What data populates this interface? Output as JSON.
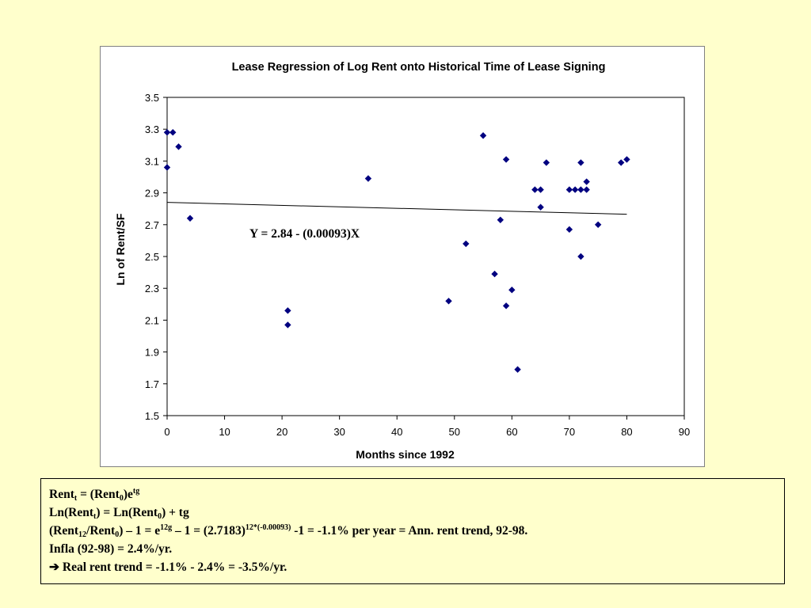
{
  "colors": {
    "background": "#FFFFCC",
    "marker": "#000080",
    "trendline": "#000000"
  },
  "chart_data": {
    "type": "scatter",
    "title": "Lease Regression of Log Rent onto Historical Time of Lease Signing",
    "xlabel": "Months since 1992",
    "ylabel": "Ln of Rent/SF",
    "xlim": [
      0,
      90
    ],
    "ylim": [
      1.5,
      3.5
    ],
    "xticks": [
      0,
      10,
      20,
      30,
      40,
      50,
      60,
      70,
      80,
      90
    ],
    "xtick_labels": [
      "0",
      "10",
      "20",
      "30",
      "40",
      "50",
      "60",
      "70",
      "80",
      "90"
    ],
    "yticks": [
      1.5,
      1.7,
      1.9,
      2.1,
      2.3,
      2.5,
      2.7,
      2.9,
      3.1,
      3.3,
      3.5
    ],
    "ytick_labels": [
      "1.5",
      "1.7",
      "1.9",
      "2.1",
      "2.3",
      "2.5",
      "2.7",
      "2.9",
      "3.1",
      "3.3",
      "3.5"
    ],
    "grid": false,
    "legend": "none",
    "points": [
      {
        "x": 0,
        "y": 3.28
      },
      {
        "x": 0,
        "y": 3.06
      },
      {
        "x": 1,
        "y": 3.28
      },
      {
        "x": 2,
        "y": 3.19
      },
      {
        "x": 4,
        "y": 2.74
      },
      {
        "x": 21,
        "y": 2.16
      },
      {
        "x": 21,
        "y": 2.07
      },
      {
        "x": 35,
        "y": 2.99
      },
      {
        "x": 49,
        "y": 2.22
      },
      {
        "x": 52,
        "y": 2.58
      },
      {
        "x": 55,
        "y": 3.26
      },
      {
        "x": 57,
        "y": 2.39
      },
      {
        "x": 58,
        "y": 2.73
      },
      {
        "x": 59,
        "y": 3.11
      },
      {
        "x": 59,
        "y": 2.19
      },
      {
        "x": 60,
        "y": 2.29
      },
      {
        "x": 61,
        "y": 1.79
      },
      {
        "x": 64,
        "y": 2.92
      },
      {
        "x": 65,
        "y": 2.92
      },
      {
        "x": 65,
        "y": 2.81
      },
      {
        "x": 66,
        "y": 3.09
      },
      {
        "x": 70,
        "y": 2.92
      },
      {
        "x": 70,
        "y": 2.67
      },
      {
        "x": 71,
        "y": 2.92
      },
      {
        "x": 72,
        "y": 2.92
      },
      {
        "x": 72,
        "y": 3.09
      },
      {
        "x": 72,
        "y": 2.5
      },
      {
        "x": 73,
        "y": 2.92
      },
      {
        "x": 73,
        "y": 2.97
      },
      {
        "x": 75,
        "y": 2.7
      },
      {
        "x": 79,
        "y": 3.09
      },
      {
        "x": 80,
        "y": 3.11
      }
    ],
    "trendline": {
      "intercept": 2.84,
      "slope": -0.00093,
      "x_range": [
        0,
        80
      ]
    },
    "annotation": "Y = 2.84 - (0.00093)X"
  },
  "notes": {
    "line1": {
      "a": "Rent",
      "a_sub": "t",
      "b": " = (Rent",
      "b_sub": "0",
      "c": ")e",
      "c_sup": "tg"
    },
    "line2": {
      "a": "Ln(Rent",
      "a_sub": "t",
      "b": ") = Ln(Rent",
      "b_sub": "0",
      "c": ") +  tg"
    },
    "line3": {
      "a": "(Rent",
      "a_sub": "12",
      "b": "/Rent",
      "b_sub": "0",
      "c": ") – 1 = e",
      "c_sup": "12g",
      "d": " – 1 = (2.7183)",
      "d_sup": "12*(-0.00093)",
      "e": " -1 = -1.1% per year = Ann. rent trend, 92-98."
    },
    "line4": "Infla (92-98) = 2.4%/yr.",
    "line5_arrow": "➔",
    "line5_text": " Real rent trend = -1.1% - 2.4% = -3.5%/yr."
  }
}
